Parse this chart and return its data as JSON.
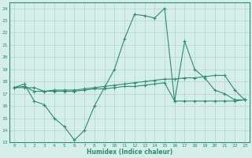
{
  "xlabel": "Humidex (Indice chaleur)",
  "x": [
    0,
    1,
    2,
    3,
    4,
    5,
    6,
    7,
    8,
    9,
    10,
    11,
    12,
    13,
    14,
    15,
    16,
    17,
    18,
    19,
    20,
    21,
    22,
    23
  ],
  "line1": [
    17.5,
    17.8,
    16.4,
    16.1,
    15.0,
    14.3,
    13.2,
    14.0,
    16.0,
    17.5,
    19.0,
    21.5,
    23.5,
    23.4,
    23.2,
    24.0,
    16.4,
    21.3,
    19.0,
    18.3,
    17.3,
    17.0,
    16.5,
    16.5
  ],
  "line2": [
    17.5,
    17.5,
    17.5,
    17.2,
    17.2,
    17.2,
    17.2,
    17.3,
    17.4,
    17.4,
    17.5,
    17.6,
    17.6,
    17.7,
    17.8,
    17.9,
    16.4,
    16.4,
    16.4,
    16.4,
    16.4,
    16.4,
    16.4,
    16.5
  ],
  "line3": [
    17.5,
    17.6,
    17.2,
    17.2,
    17.3,
    17.3,
    17.3,
    17.4,
    17.5,
    17.6,
    17.7,
    17.8,
    17.9,
    18.0,
    18.1,
    18.2,
    18.2,
    18.3,
    18.3,
    18.4,
    18.5,
    18.5,
    17.3,
    16.5
  ],
  "color": "#2e8b75",
  "bg_color": "#d5eee9",
  "grid_color": "#b0d4cc",
  "ylim": [
    13,
    24.5
  ],
  "yticks": [
    13,
    14,
    15,
    16,
    17,
    18,
    19,
    20,
    21,
    22,
    23,
    24
  ],
  "xticks": [
    0,
    1,
    2,
    3,
    4,
    5,
    6,
    7,
    8,
    9,
    10,
    11,
    12,
    13,
    14,
    15,
    16,
    17,
    18,
    19,
    20,
    21,
    22,
    23
  ]
}
